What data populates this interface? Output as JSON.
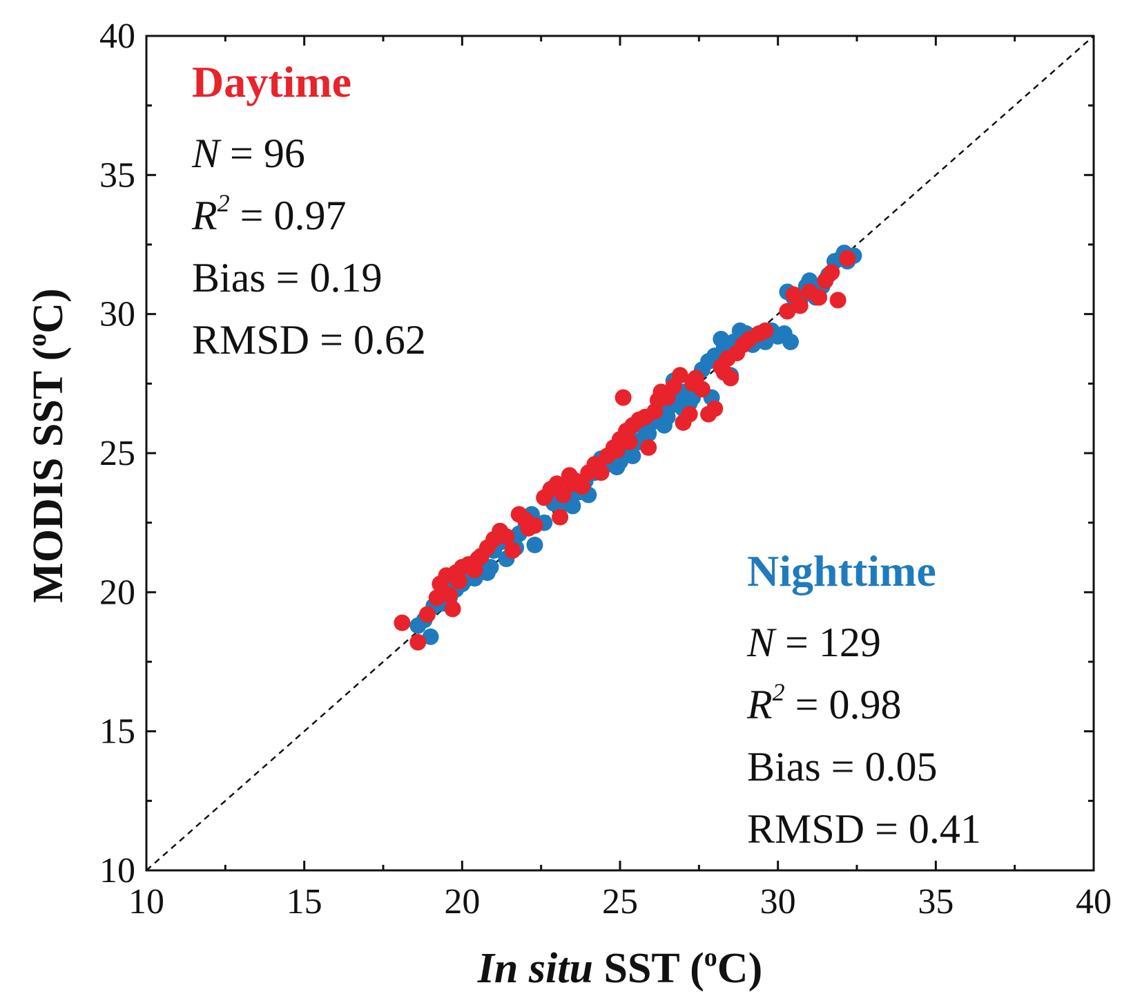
{
  "chart_data": {
    "type": "scatter",
    "title": "",
    "xlabel": {
      "italic": "In situ",
      "rest": " SST (",
      "sup": "o",
      "end": "C)"
    },
    "ylabel": {
      "rest": "MODIS SST (",
      "sup": "o",
      "end": "C)"
    },
    "xlim": [
      10,
      40
    ],
    "ylim": [
      10,
      40
    ],
    "xticks": [
      "10",
      "15",
      "20",
      "25",
      "30",
      "35",
      "40"
    ],
    "yticks": [
      "10",
      "15",
      "20",
      "25",
      "30",
      "35",
      "40"
    ],
    "reference_line": "1:1",
    "colors": {
      "daytime": "#e8232b",
      "nighttime": "#1f7bbd",
      "axis": "#111111"
    },
    "annotations": {
      "daytime": {
        "title": "Daytime",
        "n_var": "N",
        "n_value": " = 96",
        "r2_var": "R",
        "r2_sup": "2",
        "r2_value": " = 0.97",
        "bias": "Bias = 0.19",
        "rmsd": "RMSD = 0.62"
      },
      "nighttime": {
        "title": "Nighttime",
        "n_var": "N",
        "n_value": " = 129",
        "r2_var": "R",
        "r2_sup": "2",
        "r2_value": " = 0.98",
        "bias": "Bias = 0.05",
        "rmsd": "RMSD = 0.41"
      }
    },
    "series": [
      {
        "name": "Nighttime",
        "color": "#1f7bbd",
        "points": [
          [
            18.6,
            18.8
          ],
          [
            18.8,
            19.0
          ],
          [
            19.0,
            18.4
          ],
          [
            19.1,
            19.5
          ],
          [
            19.4,
            19.6
          ],
          [
            19.6,
            19.8
          ],
          [
            19.8,
            20.1
          ],
          [
            20.0,
            20.3
          ],
          [
            20.2,
            20.6
          ],
          [
            20.4,
            20.5
          ],
          [
            20.6,
            20.8
          ],
          [
            20.8,
            20.7
          ],
          [
            21.0,
            21.5
          ],
          [
            21.2,
            21.8
          ],
          [
            21.4,
            21.2
          ],
          [
            21.6,
            21.9
          ],
          [
            21.8,
            22.1
          ],
          [
            22.0,
            22.3
          ],
          [
            22.2,
            22.8
          ],
          [
            22.3,
            21.7
          ],
          [
            22.6,
            22.5
          ],
          [
            22.9,
            23.2
          ],
          [
            23.1,
            23.5
          ],
          [
            23.3,
            23.2
          ],
          [
            23.5,
            23.1
          ],
          [
            23.7,
            23.6
          ],
          [
            23.9,
            24.0
          ],
          [
            24.0,
            23.5
          ],
          [
            24.2,
            24.3
          ],
          [
            24.4,
            24.8
          ],
          [
            24.6,
            24.6
          ],
          [
            24.8,
            24.9
          ],
          [
            24.9,
            24.5
          ],
          [
            25.1,
            25.2
          ],
          [
            25.3,
            25.6
          ],
          [
            25.4,
            24.9
          ],
          [
            25.6,
            25.4
          ],
          [
            25.8,
            25.8
          ],
          [
            26.0,
            26.1
          ],
          [
            26.2,
            26.5
          ],
          [
            26.4,
            26.0
          ],
          [
            26.6,
            26.7
          ],
          [
            26.8,
            26.9
          ],
          [
            27.0,
            27.2
          ],
          [
            27.2,
            26.8
          ],
          [
            27.3,
            27.0
          ],
          [
            27.4,
            27.5
          ],
          [
            27.6,
            28.0
          ],
          [
            27.8,
            28.3
          ],
          [
            27.9,
            27.0
          ],
          [
            28.0,
            28.5
          ],
          [
            28.2,
            29.1
          ],
          [
            28.3,
            28.8
          ],
          [
            28.5,
            27.8
          ],
          [
            28.6,
            29.0
          ],
          [
            28.8,
            29.4
          ],
          [
            29.0,
            29.3
          ],
          [
            29.2,
            28.9
          ],
          [
            29.4,
            29.2
          ],
          [
            29.6,
            29.0
          ],
          [
            29.8,
            29.4
          ],
          [
            30.0,
            29.2
          ],
          [
            30.2,
            29.3
          ],
          [
            30.4,
            29.0
          ],
          [
            30.5,
            30.6
          ],
          [
            30.7,
            30.5
          ],
          [
            30.9,
            31.0
          ],
          [
            31.0,
            31.2
          ],
          [
            31.2,
            30.6
          ],
          [
            31.4,
            31.0
          ],
          [
            31.6,
            31.4
          ],
          [
            31.8,
            31.9
          ],
          [
            32.0,
            32.0
          ],
          [
            32.2,
            31.9
          ],
          [
            32.4,
            32.1
          ],
          [
            32.1,
            32.2
          ],
          [
            26.7,
            27.6
          ],
          [
            25.9,
            25.7
          ],
          [
            24.3,
            24.4
          ],
          [
            22.1,
            22.6
          ],
          [
            20.9,
            20.9
          ],
          [
            19.7,
            20.2
          ],
          [
            23.6,
            23.9
          ],
          [
            27.0,
            26.6
          ],
          [
            28.9,
            29.0
          ],
          [
            30.3,
            30.8
          ],
          [
            26.5,
            26.3
          ],
          [
            25.0,
            24.7
          ],
          [
            23.4,
            23.4
          ],
          [
            21.7,
            21.6
          ]
        ]
      },
      {
        "name": "Daytime",
        "color": "#e8232b",
        "points": [
          [
            18.1,
            18.9
          ],
          [
            18.6,
            18.2
          ],
          [
            18.9,
            19.2
          ],
          [
            19.2,
            19.8
          ],
          [
            19.3,
            20.3
          ],
          [
            19.4,
            20.0
          ],
          [
            19.5,
            20.6
          ],
          [
            19.6,
            19.9
          ],
          [
            19.7,
            19.4
          ],
          [
            19.8,
            20.7
          ],
          [
            20.0,
            20.9
          ],
          [
            20.2,
            21.0
          ],
          [
            20.4,
            20.8
          ],
          [
            20.6,
            21.3
          ],
          [
            20.8,
            21.6
          ],
          [
            21.0,
            21.9
          ],
          [
            21.2,
            22.2
          ],
          [
            21.4,
            22.0
          ],
          [
            21.6,
            21.5
          ],
          [
            21.8,
            22.8
          ],
          [
            22.0,
            22.6
          ],
          [
            22.3,
            22.4
          ],
          [
            22.6,
            23.4
          ],
          [
            22.8,
            23.7
          ],
          [
            23.0,
            23.9
          ],
          [
            23.1,
            22.7
          ],
          [
            23.2,
            23.5
          ],
          [
            23.4,
            24.2
          ],
          [
            23.6,
            24.0
          ],
          [
            23.8,
            23.8
          ],
          [
            24.0,
            24.3
          ],
          [
            24.2,
            24.6
          ],
          [
            24.4,
            24.3
          ],
          [
            24.6,
            24.9
          ],
          [
            24.8,
            25.2
          ],
          [
            25.0,
            25.5
          ],
          [
            25.1,
            27.0
          ],
          [
            25.2,
            25.8
          ],
          [
            25.4,
            26.0
          ],
          [
            25.6,
            26.2
          ],
          [
            25.8,
            26.3
          ],
          [
            25.9,
            25.2
          ],
          [
            26.1,
            26.5
          ],
          [
            26.3,
            27.2
          ],
          [
            26.5,
            27.0
          ],
          [
            26.7,
            27.4
          ],
          [
            26.9,
            27.8
          ],
          [
            27.0,
            26.1
          ],
          [
            27.2,
            26.4
          ],
          [
            27.4,
            27.7
          ],
          [
            27.6,
            27.3
          ],
          [
            27.8,
            26.4
          ],
          [
            28.0,
            26.6
          ],
          [
            28.2,
            28.1
          ],
          [
            28.4,
            28.4
          ],
          [
            28.5,
            27.7
          ],
          [
            28.7,
            28.6
          ],
          [
            28.9,
            28.9
          ],
          [
            29.1,
            29.1
          ],
          [
            29.4,
            29.3
          ],
          [
            29.6,
            29.4
          ],
          [
            30.3,
            30.1
          ],
          [
            30.5,
            30.7
          ],
          [
            30.7,
            30.3
          ],
          [
            31.0,
            30.8
          ],
          [
            31.3,
            30.6
          ],
          [
            31.5,
            31.2
          ],
          [
            31.7,
            31.5
          ],
          [
            31.9,
            30.5
          ],
          [
            32.2,
            32.0
          ],
          [
            26.2,
            26.9
          ],
          [
            25.3,
            25.4
          ],
          [
            24.3,
            24.5
          ],
          [
            23.5,
            23.9
          ],
          [
            22.1,
            22.3
          ],
          [
            20.5,
            21.2
          ],
          [
            19.9,
            20.4
          ],
          [
            27.3,
            27.5
          ],
          [
            28.3,
            27.9
          ],
          [
            24.9,
            25.1
          ]
        ]
      }
    ]
  }
}
